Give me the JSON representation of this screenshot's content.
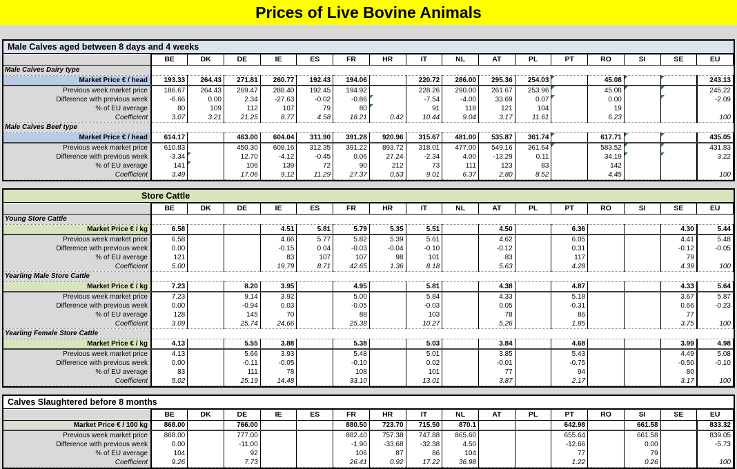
{
  "title": "Prices of Live Bovine Animals",
  "columns": [
    "BE",
    "DK",
    "DE",
    "IE",
    "ES",
    "FR",
    "HR",
    "IT",
    "NL",
    "AT",
    "PL",
    "PT",
    "RO",
    "SI",
    "SE",
    "EU"
  ],
  "row_labels": {
    "prev": "Previous week market price",
    "diff": "Difference with previous week",
    "pct": "% of EU average",
    "coef": "Coefficient"
  },
  "colors": {
    "title_bg": "#ffff00",
    "page_bg": "#d9d9d9",
    "section1_header_bg": "#dce3ec",
    "section1_price_bg": "#b8cce4",
    "section2_header_bg": "#d7e4bc",
    "section2_price_bg": "#d7e4bc",
    "section3_price_bg": "#dbe0d4",
    "label_column_bg": "#d9d9d9",
    "comment_flag": "#2e7d32"
  },
  "sections": [
    {
      "title": "Male Calves aged between 8 days and 4 weeks",
      "style": "blue",
      "blocks": [
        {
          "name": "Male Calves Dairy type",
          "price_label": "Market Price € / head",
          "market": [
            "193.33",
            "264.43",
            "271.81",
            "260.77",
            "192.43",
            "194.06",
            "",
            "220.72",
            "286.00",
            "295.36",
            "254.03",
            "",
            "45.08",
            "",
            "",
            "243.13"
          ],
          "prev": [
            "186.67",
            "264.43",
            "269.47",
            "288.40",
            "192.45",
            "194.92",
            "",
            "228.26",
            "290.00",
            "261.67",
            "253.96",
            "",
            "45.08",
            "",
            "",
            "245.22"
          ],
          "diff": [
            "-6.66",
            "0.00",
            "2.34",
            "-27.63",
            "-0.02",
            "-0.86",
            "",
            "-7.54",
            "-4.00",
            "33.69",
            "0.07",
            "",
            "0.00",
            "",
            "",
            "-2.09"
          ],
          "pct": [
            "80",
            "109",
            "112",
            "107",
            "79",
            "80",
            "",
            "91",
            "118",
            "121",
            "104",
            "",
            "19",
            "",
            "",
            ""
          ],
          "coef": [
            "3.07",
            "3.21",
            "21.25",
            "8.77",
            "4.58",
            "18.21",
            "0.42",
            "10.44",
            "9.04",
            "3.17",
            "11.61",
            "",
            "6.23",
            "",
            "",
            "100"
          ],
          "flags": {
            "0": [
              11,
              13,
              14
            ],
            "1": [
              11,
              13,
              14
            ],
            "2": [
              6,
              11,
              14
            ],
            "3": [
              6
            ]
          }
        },
        {
          "name": "Male Calves Beef type",
          "price_label": "Market Price € / head",
          "market": [
            "614.17",
            "",
            "463.00",
            "604.04",
            "311.90",
            "391.28",
            "920.96",
            "315.67",
            "481.00",
            "535.87",
            "361.74",
            "",
            "617.71",
            "",
            "",
            "435.05"
          ],
          "prev": [
            "610.83",
            "",
            "450.30",
            "608.16",
            "312.35",
            "391.22",
            "893.72",
            "318.01",
            "477.00",
            "549.16",
            "361.64",
            "",
            "583.52",
            "",
            "",
            "431.83"
          ],
          "diff": [
            "-3.34",
            "",
            "12.70",
            "-4.12",
            "-0.45",
            "0.06",
            "27.24",
            "-2.34",
            "4.00",
            "-13.29",
            "0.11",
            "",
            "34.19",
            "",
            "",
            "3.22"
          ],
          "pct": [
            "141",
            "",
            "106",
            "139",
            "72",
            "90",
            "212",
            "73",
            "111",
            "123",
            "83",
            "",
            "142",
            "",
            "",
            ""
          ],
          "coef": [
            "3.49",
            "",
            "17.06",
            "9.12",
            "11.29",
            "27.37",
            "0.53",
            "9.01",
            "6.37",
            "2.80",
            "8.52",
            "",
            "4.45",
            "",
            "",
            "100"
          ],
          "flags": {
            "0": [
              11,
              13,
              14
            ],
            "1": [
              11,
              13,
              14
            ],
            "2": [
              1,
              13,
              14
            ],
            "3": [
              1
            ]
          }
        }
      ]
    },
    {
      "title": "Store Cattle",
      "style": "green",
      "blocks": [
        {
          "name": "Young Store Cattle",
          "price_label": "Market Price € / kg",
          "market": [
            "6.58",
            "",
            "",
            "4.51",
            "5.81",
            "5.79",
            "5.35",
            "5.51",
            "",
            "4.50",
            "",
            "6.36",
            "",
            "",
            "4.30",
            "5.44"
          ],
          "prev": [
            "6.58",
            "",
            "",
            "4.66",
            "5.77",
            "5.82",
            "5.39",
            "5.61",
            "",
            "4.62",
            "",
            "6.05",
            "",
            "",
            "4.41",
            "5.48"
          ],
          "diff": [
            "0.00",
            "",
            "",
            "-0.15",
            "0.04",
            "-0.03",
            "-0.04",
            "-0.10",
            "",
            "-0.12",
            "",
            "0.31",
            "",
            "",
            "-0.12",
            "-0.05"
          ],
          "pct": [
            "121",
            "",
            "",
            "83",
            "107",
            "107",
            "98",
            "101",
            "",
            "83",
            "",
            "117",
            "",
            "",
            "79",
            ""
          ],
          "coef": [
            "5.00",
            "",
            "",
            "19.79",
            "8.71",
            "42.65",
            "1.36",
            "8.18",
            "",
            "5.63",
            "",
            "4.28",
            "",
            "",
            "4.39",
            "100"
          ],
          "flags": {}
        },
        {
          "name": "Yearling Male Store Cattle",
          "price_label": "Market Price € / kg",
          "market": [
            "7.23",
            "",
            "8.20",
            "3.95",
            "",
            "4.95",
            "",
            "5.81",
            "",
            "4.38",
            "",
            "4.87",
            "",
            "",
            "4.33",
            "5.64"
          ],
          "prev": [
            "7.23",
            "",
            "9.14",
            "3.92",
            "",
            "5.00",
            "",
            "5.84",
            "",
            "4.33",
            "",
            "5.18",
            "",
            "",
            "3.67",
            "5.87"
          ],
          "diff": [
            "0.00",
            "",
            "-0.94",
            "0.03",
            "",
            "-0.05",
            "",
            "-0.03",
            "",
            "0.05",
            "",
            "-0.31",
            "",
            "",
            "0.66",
            "-0.23"
          ],
          "pct": [
            "128",
            "",
            "145",
            "70",
            "",
            "88",
            "",
            "103",
            "",
            "78",
            "",
            "86",
            "",
            "",
            "77",
            ""
          ],
          "coef": [
            "3.09",
            "",
            "25.74",
            "24.66",
            "",
            "25.38",
            "",
            "10.27",
            "",
            "5.26",
            "",
            "1.85",
            "",
            "",
            "3.75",
            "100"
          ],
          "flags": {}
        },
        {
          "name": "Yearling Female Store Cattle",
          "price_label": "Market Price € / kg",
          "market": [
            "4.13",
            "",
            "5.55",
            "3.88",
            "",
            "5.38",
            "",
            "5.03",
            "",
            "3.84",
            "",
            "4.68",
            "",
            "",
            "3.99",
            "4.98"
          ],
          "prev": [
            "4.13",
            "",
            "5.66",
            "3.93",
            "",
            "5.48",
            "",
            "5.01",
            "",
            "3.85",
            "",
            "5.43",
            "",
            "",
            "4.49",
            "5.08"
          ],
          "diff": [
            "0.00",
            "",
            "-0.11",
            "-0.05",
            "",
            "-0.10",
            "",
            "0.02",
            "",
            "-0.01",
            "",
            "-0.75",
            "",
            "",
            "-0.50",
            "-0.10"
          ],
          "pct": [
            "83",
            "",
            "111",
            "78",
            "",
            "108",
            "",
            "101",
            "",
            "77",
            "",
            "94",
            "",
            "",
            "80",
            ""
          ],
          "coef": [
            "5.02",
            "",
            "25.19",
            "14.48",
            "",
            "33.10",
            "",
            "13.01",
            "",
            "3.87",
            "",
            "2.17",
            "",
            "",
            "3.17",
            "100"
          ],
          "flags": {}
        }
      ]
    },
    {
      "title": "Calves Slaughtered before 8 months",
      "style": "white",
      "blocks": [
        {
          "name": null,
          "price_label": "Market Price € / 100 kg",
          "market": [
            "868.00",
            "",
            "766.00",
            "",
            "",
            "880.50",
            "723.70",
            "715.50",
            "870.1",
            "",
            "",
            "642.98",
            "",
            "661.58",
            "",
            "833.32"
          ],
          "prev": [
            "868.00",
            "",
            "777.00",
            "",
            "",
            "882.40",
            "757.38",
            "747.88",
            "865.60",
            "",
            "",
            "655.64",
            "",
            "661.58",
            "",
            "839.05"
          ],
          "diff": [
            "0.00",
            "",
            "-11.00",
            "",
            "",
            "-1.90",
            "-33.68",
            "-32.38",
            "4.50",
            "",
            "",
            "-12.66",
            "",
            "0.00",
            "",
            "-5.73"
          ],
          "pct": [
            "104",
            "",
            "92",
            "",
            "",
            "106",
            "87",
            "86",
            "104",
            "",
            "",
            "77",
            "",
            "79",
            "",
            ""
          ],
          "coef": [
            "9.26",
            "",
            "7.73",
            "",
            "",
            "26.41",
            "0.92",
            "17.22",
            "36.98",
            "",
            "",
            "1.22",
            "",
            "0.26",
            "",
            "100"
          ],
          "flags": {}
        }
      ]
    }
  ]
}
